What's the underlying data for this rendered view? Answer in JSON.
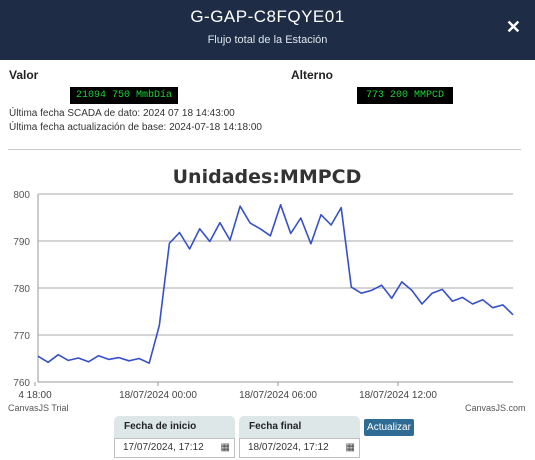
{
  "header": {
    "title": "G-GAP-C8FQYE01",
    "subtitle": "Flujo total de la Estación",
    "close_label": "✕"
  },
  "values": {
    "valor_label": "Valor",
    "valor_value": "21094 750 MmbDía",
    "alterno_label": "Alterno",
    "alterno_value": "773 200 MMPCD"
  },
  "meta": {
    "line1": "Última fecha SCADA de dato: 2024 07 18 14:43:00",
    "line2": "Última fecha actualización de base: 2024-07-18 14:18:00"
  },
  "chart_data": {
    "type": "line",
    "title": "Unidades:MMPCD",
    "xlabel": "",
    "ylabel": "",
    "ylim": [
      760,
      800
    ],
    "yticks": [
      760,
      770,
      780,
      790,
      800
    ],
    "xticks": [
      "4 18:00",
      "18/07/2024 00:00",
      "18/07/2024 06:00",
      "18/07/2024 12:00"
    ],
    "series": [
      {
        "color": "#3650c8",
        "x": [
          0,
          0.5,
          1,
          1.5,
          2,
          2.5,
          3,
          3.5,
          4,
          4.5,
          5,
          5.5,
          6,
          6.5,
          7,
          7.5,
          8,
          8.5,
          9,
          9.5,
          10,
          10.5,
          11,
          11.5,
          12,
          12.5,
          13,
          13.5,
          14,
          14.5,
          15,
          15.5,
          16,
          16.5,
          17,
          17.5,
          18,
          18.5,
          19,
          19.5,
          20,
          20.5,
          21,
          21.5,
          22,
          22.5,
          23,
          23.5
        ],
        "y": [
          765.5,
          764.2,
          765.8,
          764.6,
          765.1,
          764.3,
          765.6,
          764.8,
          765.2,
          764.5,
          765.0,
          764.0,
          772.0,
          789.5,
          791.8,
          788.3,
          792.6,
          789.9,
          793.9,
          790.2,
          797.4,
          793.8,
          792.6,
          791.1,
          797.7,
          791.6,
          794.9,
          789.4,
          795.6,
          793.4,
          797.1,
          780.2,
          778.9,
          779.5,
          780.6,
          777.8,
          781.3,
          779.5,
          776.6,
          778.9,
          779.7,
          777.2,
          778.0,
          776.6,
          777.5,
          775.8,
          776.4,
          774.3
        ]
      }
    ],
    "credit_left": "CanvasJS Trial",
    "credit_right": "CanvasJS.com"
  },
  "controls": {
    "start_label": "Fecha de inicio",
    "start_value": "17/07/2024, 17:12",
    "end_label": "Fecha final",
    "end_value": "18/07/2024, 17:12",
    "update_label": "Actualizar"
  }
}
